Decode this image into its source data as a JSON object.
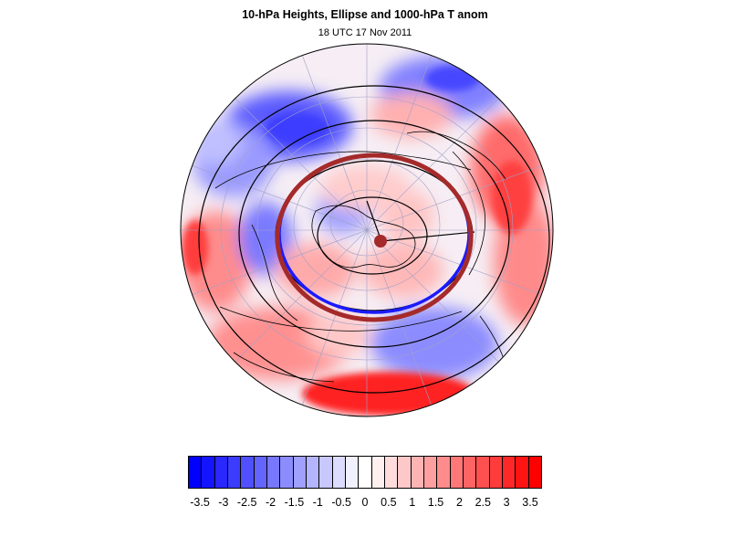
{
  "title": "10-hPa Heights, Ellipse and 1000-hPa T anom",
  "subtitle": "18 UTC 17 Nov 2011",
  "map": {
    "projection": "polar stereographic (Northern Hemisphere)",
    "shading_variable": "1000-hPa T anom",
    "contour_variable": "10-hPa Heights",
    "overlay": "Ellipse",
    "ellipse_color": "#a52a2a",
    "contour_color": "#000000",
    "coastline_color": "#000000"
  },
  "colorbar": {
    "labels": [
      "-3.5",
      "-3",
      "-2.5",
      "-2",
      "-1.5",
      "-1",
      "-0.5",
      "0",
      "0.5",
      "1",
      "1.5",
      "2",
      "2.5",
      "3",
      "3.5"
    ],
    "colors": [
      "#0000ff",
      "#1414ff",
      "#2828ff",
      "#3c3cff",
      "#5050ff",
      "#6464ff",
      "#7878ff",
      "#8c8cff",
      "#a0a0ff",
      "#b4b4ff",
      "#c8c8ff",
      "#dcdcff",
      "#f0f0ff",
      "#ffffff",
      "#fff0f0",
      "#ffdcdc",
      "#ffc8c8",
      "#ffb4b4",
      "#ffa0a0",
      "#ff8c8c",
      "#ff7878",
      "#ff6464",
      "#ff5050",
      "#ff3c3c",
      "#ff2828",
      "#ff1414",
      "#ff0000"
    ]
  }
}
